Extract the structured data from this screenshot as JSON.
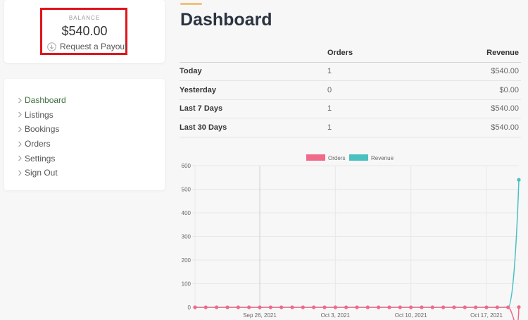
{
  "balance": {
    "caption": "BALANCE",
    "amount": "$540.00",
    "payout_label": "Request a Payout"
  },
  "nav": {
    "items": [
      {
        "label": "Dashboard",
        "active": true
      },
      {
        "label": "Listings",
        "active": false
      },
      {
        "label": "Bookings",
        "active": false
      },
      {
        "label": "Orders",
        "active": false
      },
      {
        "label": "Settings",
        "active": false
      },
      {
        "label": "Sign Out",
        "active": false
      }
    ]
  },
  "page": {
    "title": "Dashboard"
  },
  "stats": {
    "headers": {
      "period": "",
      "orders": "Orders",
      "revenue": "Revenue"
    },
    "rows": [
      {
        "period": "Today",
        "orders": "1",
        "revenue": "$540.00"
      },
      {
        "period": "Yesterday",
        "orders": "0",
        "revenue": "$0.00"
      },
      {
        "period": "Last 7 Days",
        "orders": "1",
        "revenue": "$540.00"
      },
      {
        "period": "Last 30 Days",
        "orders": "1",
        "revenue": "$540.00"
      }
    ]
  },
  "colors": {
    "orders": "#f06a8a",
    "revenue": "#4bc0c0",
    "accent": "#f0c27a",
    "active_nav": "#3f6f3f",
    "highlight": "#e0141c"
  },
  "chart_data": {
    "type": "line",
    "title": "",
    "xlabel": "",
    "ylabel": "",
    "ylim": [
      0,
      600
    ],
    "yticks": [
      0,
      100,
      200,
      300,
      400,
      500,
      600
    ],
    "x_tick_labels": [
      "Sep 26, 2021",
      "Oct 3, 2021",
      "Oct 10, 2021",
      "Oct 17, 2021"
    ],
    "x_tick_positions": [
      6,
      13,
      20,
      27
    ],
    "legend_position": "top-center",
    "grid": true,
    "series": [
      {
        "name": "Orders",
        "color": "#f06a8a",
        "values": [
          0,
          0,
          0,
          0,
          0,
          0,
          0,
          0,
          0,
          0,
          0,
          0,
          0,
          0,
          0,
          0,
          0,
          0,
          0,
          0,
          0,
          0,
          0,
          0,
          0,
          0,
          0,
          0,
          0,
          0,
          1
        ]
      },
      {
        "name": "Revenue",
        "color": "#4bc0c0",
        "values": [
          0,
          0,
          0,
          0,
          0,
          0,
          0,
          0,
          0,
          0,
          0,
          0,
          0,
          0,
          0,
          0,
          0,
          0,
          0,
          0,
          0,
          0,
          0,
          0,
          0,
          0,
          0,
          0,
          0,
          0,
          540
        ]
      }
    ]
  }
}
